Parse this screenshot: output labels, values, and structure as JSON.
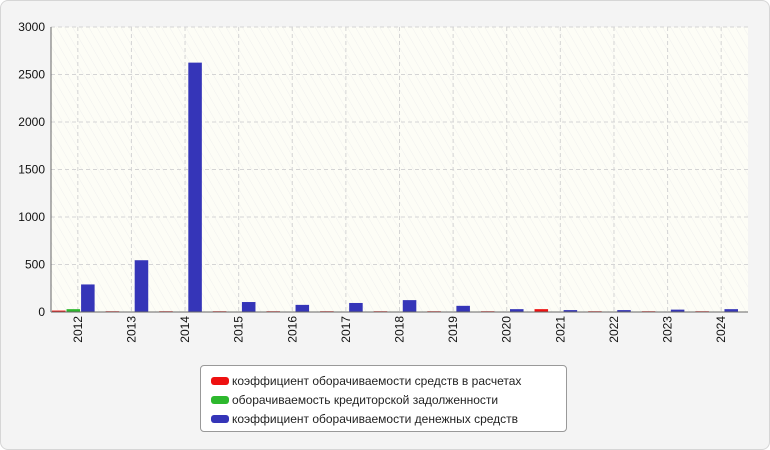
{
  "chart_data": {
    "type": "bar",
    "categories": [
      "2012",
      "2013",
      "2014",
      "2015",
      "2016",
      "2017",
      "2018",
      "2019",
      "2020",
      "2021",
      "2022",
      "2023",
      "2024"
    ],
    "series": [
      {
        "name": "коэффициент оборачиваемости средств в расчетах",
        "color": "#ee1111",
        "values": [
          15,
          8,
          8,
          8,
          8,
          8,
          8,
          8,
          8,
          30,
          8,
          8,
          8
        ]
      },
      {
        "name": "оборачиваемость кредиторской задолженности",
        "color": "#2db82d",
        "values": [
          30,
          5,
          5,
          5,
          5,
          5,
          5,
          5,
          5,
          5,
          5,
          5,
          5
        ]
      },
      {
        "name": "коэффициент оборачиваемости денежных средств",
        "color": "#3535b8",
        "values": [
          290,
          545,
          2625,
          105,
          75,
          95,
          125,
          65,
          30,
          20,
          20,
          25,
          30
        ]
      }
    ],
    "ylim": [
      0,
      3000
    ],
    "yticks": [
      0,
      500,
      1000,
      1500,
      2000,
      2500,
      3000
    ],
    "grid": true,
    "legend_position": "bottom-center"
  }
}
